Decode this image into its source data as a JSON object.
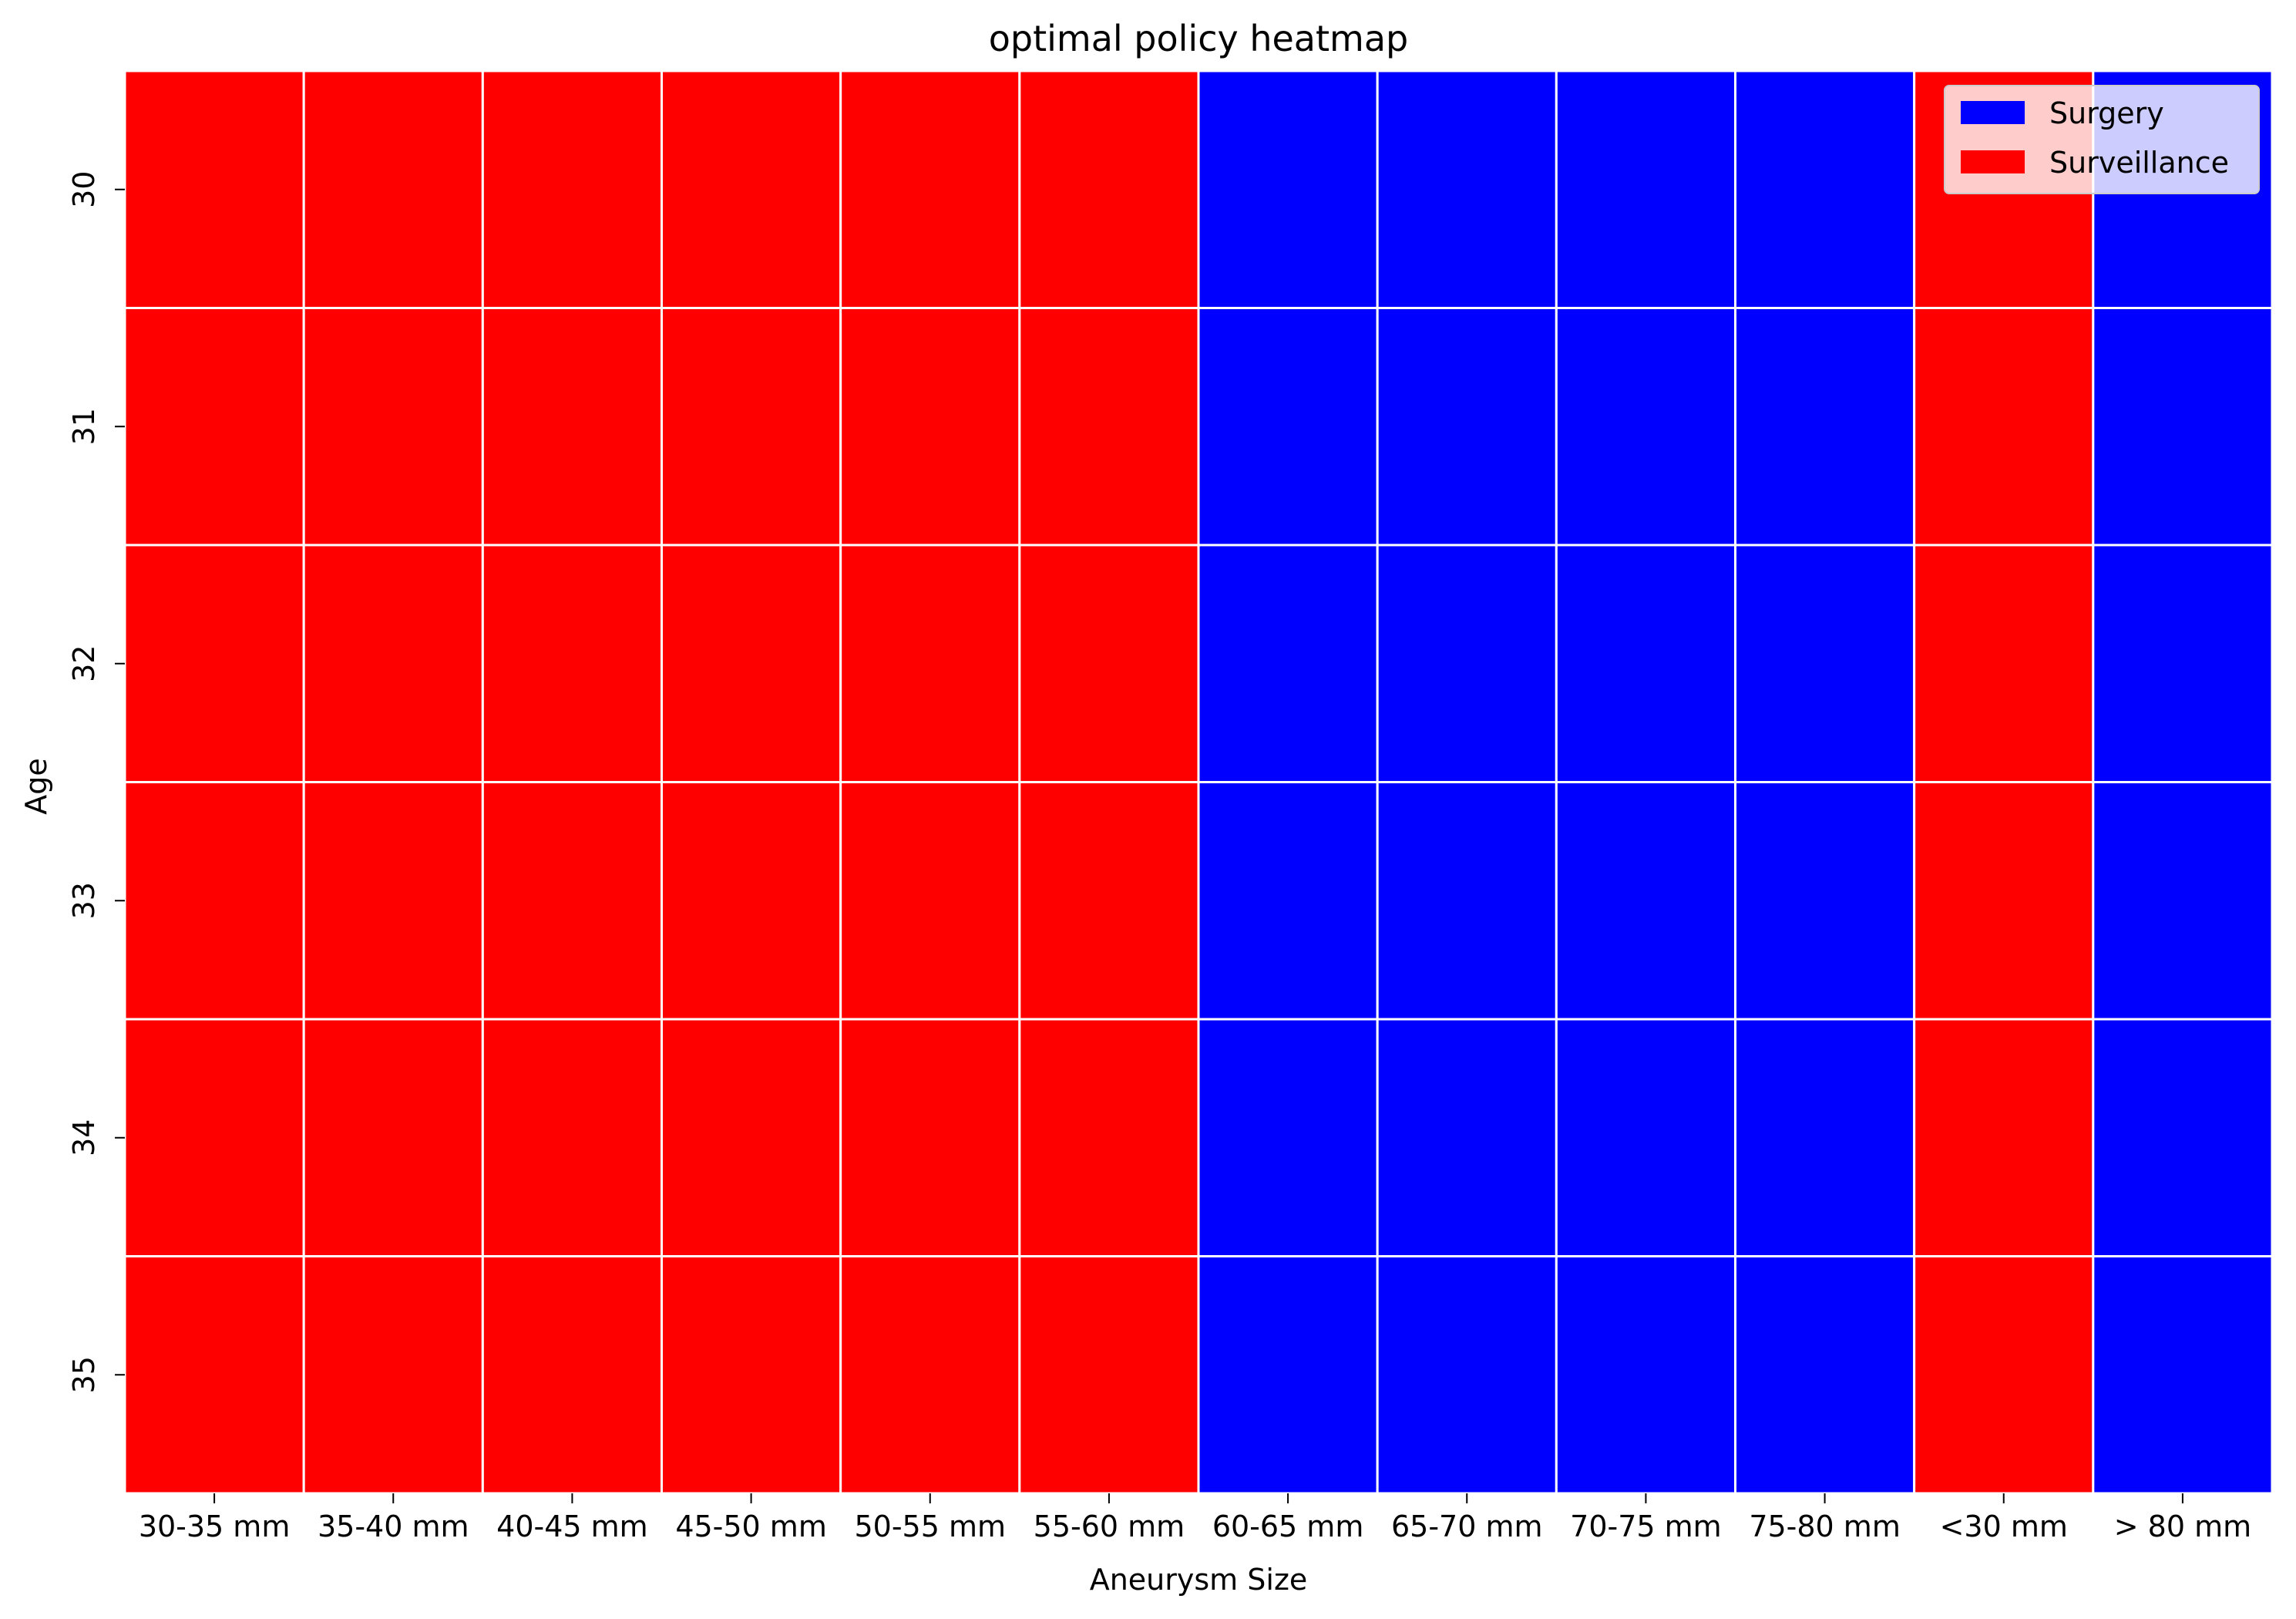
{
  "chart_data": {
    "type": "heatmap",
    "title": "optimal policy heatmap",
    "xlabel": "Aneurysm Size",
    "ylabel": "Age",
    "x_categories": [
      "30-35 mm",
      "35-40 mm",
      "40-45 mm",
      "45-50 mm",
      "50-55 mm",
      "55-60 mm",
      "60-65 mm",
      "65-70 mm",
      "70-75 mm",
      "75-80 mm",
      "<30 mm",
      "> 80 mm"
    ],
    "y_categories": [
      "30",
      "31",
      "32",
      "33",
      "34",
      "35"
    ],
    "cell_values": [
      [
        "Surveillance",
        "Surveillance",
        "Surveillance",
        "Surveillance",
        "Surveillance",
        "Surveillance",
        "Surgery",
        "Surgery",
        "Surgery",
        "Surgery",
        "Surveillance",
        "Surgery"
      ],
      [
        "Surveillance",
        "Surveillance",
        "Surveillance",
        "Surveillance",
        "Surveillance",
        "Surveillance",
        "Surgery",
        "Surgery",
        "Surgery",
        "Surgery",
        "Surveillance",
        "Surgery"
      ],
      [
        "Surveillance",
        "Surveillance",
        "Surveillance",
        "Surveillance",
        "Surveillance",
        "Surveillance",
        "Surgery",
        "Surgery",
        "Surgery",
        "Surgery",
        "Surveillance",
        "Surgery"
      ],
      [
        "Surveillance",
        "Surveillance",
        "Surveillance",
        "Surveillance",
        "Surveillance",
        "Surveillance",
        "Surgery",
        "Surgery",
        "Surgery",
        "Surgery",
        "Surveillance",
        "Surgery"
      ],
      [
        "Surveillance",
        "Surveillance",
        "Surveillance",
        "Surveillance",
        "Surveillance",
        "Surveillance",
        "Surgery",
        "Surgery",
        "Surgery",
        "Surgery",
        "Surveillance",
        "Surgery"
      ],
      [
        "Surveillance",
        "Surveillance",
        "Surveillance",
        "Surveillance",
        "Surveillance",
        "Surveillance",
        "Surgery",
        "Surgery",
        "Surgery",
        "Surgery",
        "Surveillance",
        "Surgery"
      ]
    ],
    "legend": {
      "placement": "top-right",
      "entries": [
        {
          "label": "Surgery",
          "color": "#0000ff"
        },
        {
          "label": "Surveillance",
          "color": "#ff0000"
        }
      ]
    },
    "colors": {
      "Surgery": "#0000ff",
      "Surveillance": "#ff0000",
      "cell_border": "#ffffff"
    }
  }
}
